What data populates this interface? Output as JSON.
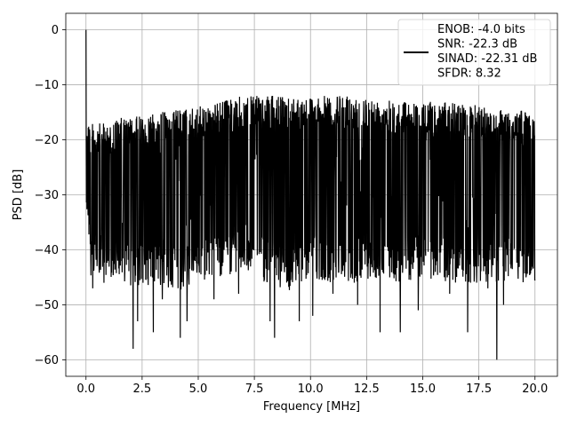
{
  "chart_data": {
    "type": "line",
    "title": "",
    "xlabel": "Frequency [MHz]",
    "ylabel": "PSD [dB]",
    "xlim": [
      -0.9,
      21.0
    ],
    "ylim": [
      -63.0,
      3.0
    ],
    "xticks": [
      0.0,
      2.5,
      5.0,
      7.5,
      10.0,
      12.5,
      15.0,
      17.5,
      20.0
    ],
    "xtick_labels": [
      "0.0",
      "2.5",
      "5.0",
      "7.5",
      "10.0",
      "12.5",
      "15.0",
      "17.5",
      "20.0"
    ],
    "yticks": [
      0,
      -10,
      -20,
      -30,
      -40,
      -50,
      -60
    ],
    "ytick_labels": [
      "0",
      "−10",
      "−20",
      "−30",
      "−40",
      "−50",
      "−60"
    ],
    "grid": true,
    "legend": {
      "placement": "top-right",
      "lines": [
        "ENOB: -4.0 bits",
        "SNR: -22.3 dB",
        "SINAD: -22.31 dB",
        "SFDR: 8.32"
      ]
    },
    "series": [
      {
        "color": "#000000",
        "x_range": [
          0.0,
          20.0
        ],
        "envelope": {
          "x": [
            0.05,
            0.2,
            0.5,
            1.0,
            1.5,
            2.0,
            2.5,
            3.0,
            4.0,
            5.0,
            6.0,
            7.0,
            8.0,
            9.0,
            10.0,
            11.0,
            12.0,
            13.0,
            14.0,
            15.0,
            16.0,
            17.0,
            18.0,
            19.0,
            20.0
          ],
          "upper": [
            -14,
            -17,
            -17,
            -17,
            -16,
            -16,
            -15.5,
            -15,
            -14.5,
            -14,
            -13,
            -12,
            -12,
            -12,
            -12,
            -12,
            -12,
            -12.5,
            -13,
            -13,
            -13,
            -13.5,
            -14,
            -14.5,
            -15
          ],
          "lower": [
            -34,
            -46,
            -44,
            -45,
            -45,
            -47,
            -47,
            -46,
            -48,
            -46,
            -45,
            -44,
            -46,
            -48,
            -45,
            -46,
            -46,
            -46,
            -46,
            -45,
            -46,
            -46,
            -46,
            -46,
            -46
          ]
        },
        "dips": [
          [
            0.3,
            -47
          ],
          [
            0.8,
            -46
          ],
          [
            2.1,
            -58
          ],
          [
            2.3,
            -53
          ],
          [
            3.0,
            -55
          ],
          [
            3.4,
            -49
          ],
          [
            4.2,
            -56
          ],
          [
            4.5,
            -53
          ],
          [
            5.7,
            -49
          ],
          [
            6.8,
            -48
          ],
          [
            8.2,
            -53
          ],
          [
            8.4,
            -56
          ],
          [
            9.5,
            -53
          ],
          [
            10.1,
            -52
          ],
          [
            11.0,
            -48
          ],
          [
            12.1,
            -50
          ],
          [
            13.1,
            -55
          ],
          [
            14.0,
            -55
          ],
          [
            14.8,
            -51
          ],
          [
            16.2,
            -48
          ],
          [
            17.0,
            -55
          ],
          [
            17.9,
            -47
          ],
          [
            18.3,
            -60
          ],
          [
            18.6,
            -50
          ],
          [
            19.6,
            -45
          ]
        ],
        "peak": [
          0.0,
          0.0
        ]
      }
    ]
  }
}
